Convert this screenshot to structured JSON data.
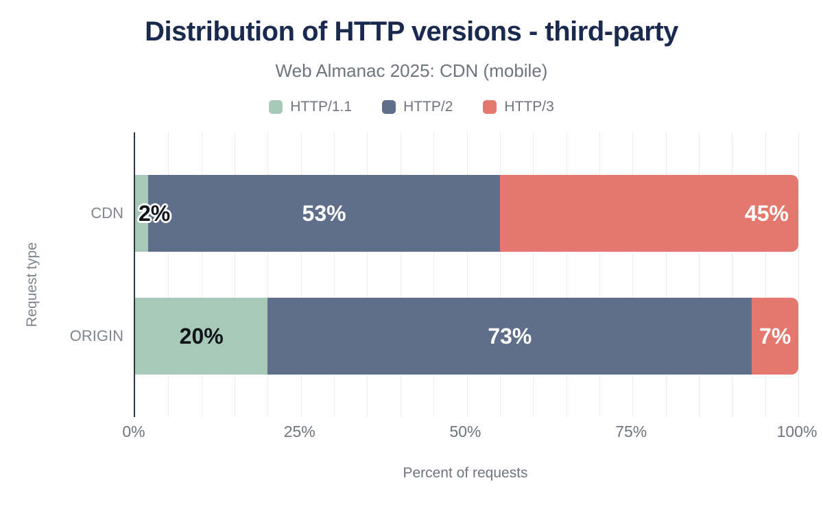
{
  "chart_data": {
    "type": "bar",
    "orientation": "horizontal",
    "stacked": true,
    "title": "Distribution of HTTP versions - third-party",
    "subtitle": "Web Almanac 2025: CDN (mobile)",
    "xlabel": "Percent of requests",
    "ylabel": "Request type",
    "xlim": [
      0,
      100
    ],
    "xticks": [
      {
        "value": 0,
        "label": "0%"
      },
      {
        "value": 25,
        "label": "25%"
      },
      {
        "value": 50,
        "label": "50%"
      },
      {
        "value": 75,
        "label": "75%"
      },
      {
        "value": 100,
        "label": "100%"
      }
    ],
    "grid": {
      "show": true,
      "interval_percent": 5
    },
    "legend_position": "top",
    "categories": [
      "CDN",
      "ORIGIN"
    ],
    "series": [
      {
        "name": "HTTP/1.1",
        "color": "#a7c9b7",
        "values": [
          2,
          20
        ]
      },
      {
        "name": "HTTP/2",
        "color": "#5f6e8a",
        "values": [
          53,
          73
        ]
      },
      {
        "name": "HTTP/3",
        "color": "#e5786e",
        "values": [
          45,
          7
        ]
      }
    ],
    "data_labels": [
      [
        {
          "text": "2%",
          "style": "dark-halo",
          "align": "left"
        },
        {
          "text": "53%",
          "style": "light",
          "align": "center"
        },
        {
          "text": "45%",
          "style": "light",
          "align": "right"
        }
      ],
      [
        {
          "text": "20%",
          "style": "dark",
          "align": "center"
        },
        {
          "text": "73%",
          "style": "light",
          "align": "center"
        },
        {
          "text": "7%",
          "style": "light",
          "align": "center"
        }
      ]
    ],
    "colors": {
      "title": "#1a2a4f",
      "text_muted": "#6f747c",
      "axis_line": "#30363f",
      "gridline": "#ededed",
      "label_light": "#ffffff",
      "label_dark": "#101318"
    }
  }
}
